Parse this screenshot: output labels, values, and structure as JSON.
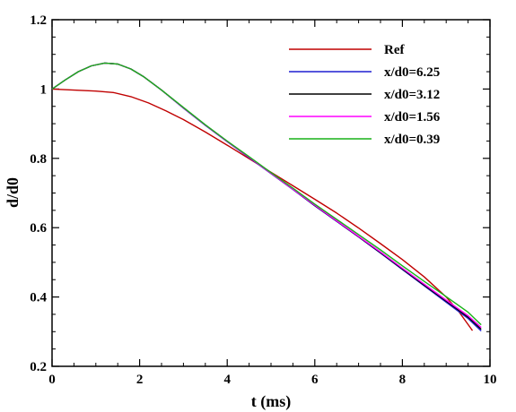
{
  "chart_data": {
    "type": "line",
    "xlabel": "t (ms)",
    "ylabel": "d/d0",
    "xlim": [
      0,
      10
    ],
    "ylim": [
      0.2,
      1.2
    ],
    "x_ticks": [
      0,
      2,
      4,
      6,
      8,
      10
    ],
    "y_ticks": [
      0.2,
      0.4,
      0.6,
      0.8,
      1,
      1.2
    ],
    "x_tick_labels": [
      "0",
      "2",
      "4",
      "6",
      "8",
      "10"
    ],
    "y_tick_labels": [
      "0.2",
      "0.4",
      "0.6",
      "0.8",
      "1",
      "1.2"
    ],
    "grid": false,
    "legend_position": "top-right",
    "series": [
      {
        "name": "Ref",
        "color": "#c00000",
        "x": [
          0,
          0.5,
          1.0,
          1.4,
          1.8,
          2.2,
          2.6,
          3.0,
          3.5,
          4.0,
          4.5,
          5.0,
          5.5,
          6.0,
          6.5,
          7.0,
          7.5,
          8.0,
          8.5,
          9.0,
          9.3,
          9.6
        ],
        "y": [
          1.0,
          0.997,
          0.994,
          0.99,
          0.978,
          0.96,
          0.937,
          0.912,
          0.876,
          0.838,
          0.799,
          0.76,
          0.721,
          0.682,
          0.642,
          0.599,
          0.554,
          0.508,
          0.458,
          0.4,
          0.356,
          0.303
        ]
      },
      {
        "name": "x/d0=6.25",
        "color": "#1f1fd0",
        "x": [
          0,
          0.3,
          0.6,
          0.9,
          1.2,
          1.5,
          1.8,
          2.1,
          2.5,
          3.0,
          3.5,
          4.0,
          4.5,
          5.0,
          5.5,
          6.0,
          6.5,
          7.0,
          7.5,
          8.0,
          8.5,
          9.0,
          9.5,
          9.8
        ],
        "y": [
          1.0,
          1.026,
          1.05,
          1.067,
          1.075,
          1.072,
          1.058,
          1.035,
          0.997,
          0.945,
          0.895,
          0.848,
          0.802,
          0.756,
          0.71,
          0.663,
          0.618,
          0.573,
          0.527,
          0.479,
          0.432,
          0.385,
          0.338,
          0.302
        ]
      },
      {
        "name": "x/d0=3.12",
        "color": "#000000",
        "x": [
          0,
          0.3,
          0.6,
          0.9,
          1.2,
          1.5,
          1.8,
          2.1,
          2.5,
          3.0,
          3.5,
          4.0,
          4.5,
          5.0,
          5.5,
          6.0,
          6.5,
          7.0,
          7.5,
          8.0,
          8.5,
          9.0,
          9.5,
          9.8
        ],
        "y": [
          1.0,
          1.026,
          1.05,
          1.067,
          1.075,
          1.072,
          1.058,
          1.035,
          0.997,
          0.946,
          0.896,
          0.849,
          0.803,
          0.757,
          0.711,
          0.664,
          0.619,
          0.574,
          0.528,
          0.481,
          0.434,
          0.388,
          0.342,
          0.307
        ]
      },
      {
        "name": "x/d0=1.56",
        "color": "#ff00ff",
        "x": [
          0,
          0.3,
          0.6,
          0.9,
          1.2,
          1.5,
          1.8,
          2.1,
          2.5,
          3.0,
          3.5,
          4.0,
          4.5,
          5.0,
          5.5,
          6.0,
          6.5,
          7.0,
          7.5,
          8.0,
          8.5,
          9.0,
          9.5,
          9.8
        ],
        "y": [
          1.0,
          1.026,
          1.05,
          1.067,
          1.075,
          1.072,
          1.058,
          1.035,
          0.997,
          0.946,
          0.896,
          0.849,
          0.803,
          0.757,
          0.711,
          0.665,
          0.62,
          0.575,
          0.53,
          0.483,
          0.437,
          0.391,
          0.346,
          0.312
        ]
      },
      {
        "name": "x/d0=0.39",
        "color": "#19b219",
        "x": [
          0,
          0.3,
          0.6,
          0.9,
          1.2,
          1.5,
          1.8,
          2.1,
          2.5,
          3.0,
          3.5,
          4.0,
          4.5,
          5.0,
          5.5,
          6.0,
          6.5,
          7.0,
          7.5,
          8.0,
          8.5,
          9.0,
          9.5,
          9.8
        ],
        "y": [
          1.0,
          1.026,
          1.05,
          1.067,
          1.075,
          1.072,
          1.058,
          1.035,
          0.997,
          0.947,
          0.897,
          0.85,
          0.805,
          0.759,
          0.714,
          0.668,
          0.624,
          0.58,
          0.536,
          0.49,
          0.445,
          0.401,
          0.356,
          0.32
        ]
      }
    ]
  }
}
